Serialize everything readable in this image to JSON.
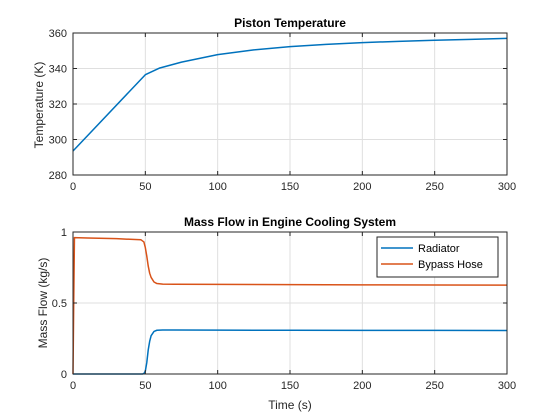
{
  "chart_data": [
    {
      "type": "line",
      "title": "Piston Temperature",
      "xlabel": "",
      "ylabel": "Temperature (K)",
      "xlim": [
        0,
        300
      ],
      "ylim": [
        280,
        360
      ],
      "xticks": [
        0,
        50,
        100,
        150,
        200,
        250,
        300
      ],
      "yticks": [
        280,
        300,
        320,
        340,
        360
      ],
      "grid": true,
      "series": [
        {
          "name": "",
          "color": "#0072BD",
          "x": [
            0,
            50,
            60,
            75,
            100,
            125,
            150,
            175,
            200,
            225,
            250,
            275,
            300
          ],
          "y": [
            293.5,
            336.5,
            340.3,
            343.6,
            347.8,
            350.5,
            352.3,
            353.6,
            354.6,
            355.3,
            355.9,
            356.4,
            357.0
          ]
        }
      ]
    },
    {
      "type": "line",
      "title": "Mass Flow in Engine Cooling System",
      "xlabel": "Time (s)",
      "ylabel": "Mass Flow (kg/s)",
      "xlim": [
        0,
        300
      ],
      "ylim": [
        0,
        1
      ],
      "xticks": [
        0,
        50,
        100,
        150,
        200,
        250,
        300
      ],
      "yticks": [
        0,
        0.5,
        1
      ],
      "grid": true,
      "legend": "top-right",
      "series": [
        {
          "name": "Radiator",
          "color": "#0072BD",
          "x": [
            0,
            48,
            49,
            50,
            51,
            52,
            53,
            54,
            56,
            58,
            62,
            70,
            100,
            150,
            200,
            250,
            300
          ],
          "y": [
            0,
            0,
            0.003,
            0.02,
            0.08,
            0.17,
            0.23,
            0.27,
            0.3,
            0.308,
            0.31,
            0.31,
            0.309,
            0.308,
            0.307,
            0.307,
            0.306
          ]
        },
        {
          "name": "Bypass Hose",
          "color": "#D95319",
          "x": [
            0,
            0.5,
            1,
            10,
            30,
            47,
            49,
            50,
            51,
            52,
            53,
            54,
            56,
            58,
            62,
            70,
            100,
            150,
            200,
            250,
            300
          ],
          "y": [
            0,
            0.5,
            0.96,
            0.958,
            0.953,
            0.945,
            0.93,
            0.89,
            0.83,
            0.76,
            0.71,
            0.68,
            0.648,
            0.637,
            0.633,
            0.632,
            0.631,
            0.629,
            0.628,
            0.627,
            0.626
          ]
        }
      ]
    }
  ]
}
